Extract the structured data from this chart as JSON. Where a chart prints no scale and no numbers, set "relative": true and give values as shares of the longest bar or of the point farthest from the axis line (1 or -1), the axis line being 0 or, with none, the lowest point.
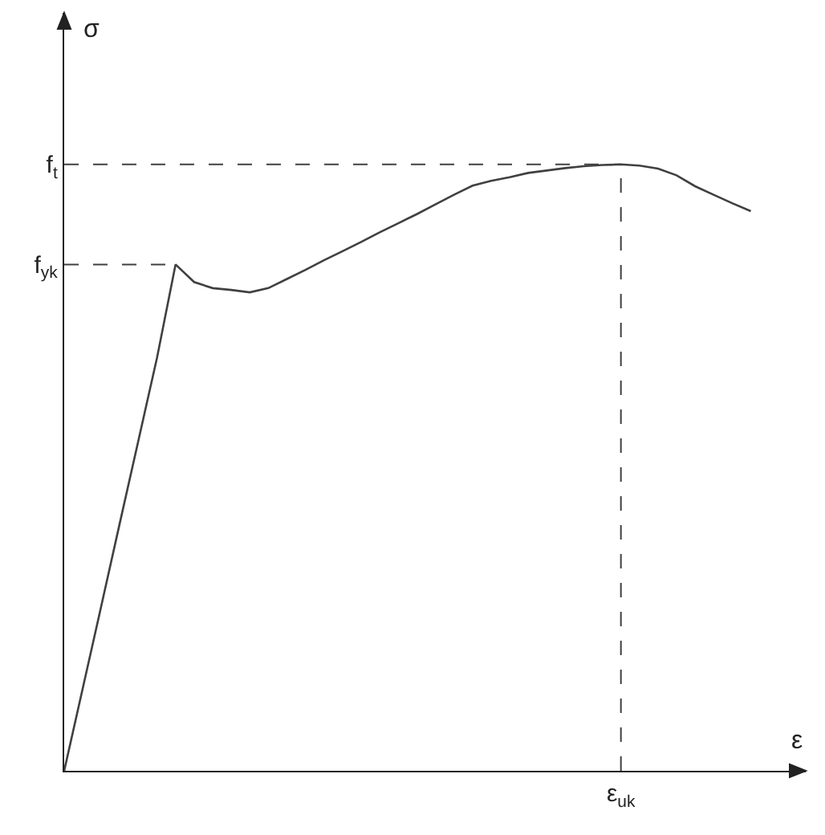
{
  "chart_data": {
    "type": "line",
    "relative": true,
    "xlabel": "ε",
    "ylabel": "σ",
    "categories": [
      null,
      null,
      null,
      null,
      null,
      null,
      null,
      null,
      null,
      null,
      null,
      null,
      null,
      null,
      null,
      null,
      null,
      null,
      null,
      null,
      null,
      null,
      null,
      null,
      null,
      null,
      null,
      null,
      null,
      null,
      null,
      null,
      null,
      null,
      null,
      null,
      null,
      null
    ],
    "series": [
      {
        "color": "#404040",
        "values": [
          0,
          0.136,
          0.272,
          0.409,
          0.545,
          0.681,
          0.835,
          0.806,
          0.796,
          0.793,
          0.789,
          0.796,
          0.811,
          0.826,
          0.842,
          0.857,
          0.872,
          0.888,
          0.903,
          0.918,
          0.934,
          0.95,
          0.965,
          0.973,
          0.979,
          0.986,
          0.99,
          0.994,
          0.997,
          0.999,
          1,
          0.998,
          0.993,
          0.982,
          0.964,
          0.95,
          0.936,
          0.923
        ]
      }
    ],
    "ref_lines": [
      {
        "axis": "y",
        "value": 1,
        "label": "f$_{t}$",
        "line_style": "dashed",
        "color": "#404040"
      },
      {
        "axis": "y",
        "value": 0.835,
        "label": "f$_{yk}$",
        "line_style": "dashed",
        "color": "#404040"
      },
      {
        "axis": "x",
        "label": "ε$_{uk}$",
        "line_style": "dashed",
        "color": "#404040"
      }
    ],
    "line_style": "solid",
    "marker": "none"
  }
}
